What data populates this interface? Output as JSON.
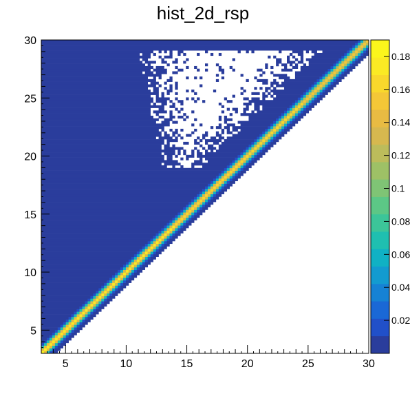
{
  "chart_data": {
    "type": "heatmap",
    "title": "hist_2d_rsp",
    "xlabel": "",
    "ylabel": "",
    "xlim": [
      3,
      30
    ],
    "ylim": [
      3,
      30
    ],
    "x_ticks": [
      "5",
      "10",
      "15",
      "20",
      "25",
      "30"
    ],
    "y_ticks": [
      "5",
      "10",
      "15",
      "20",
      "25",
      "30"
    ],
    "colorbar": {
      "range": [
        0,
        0.19
      ],
      "tick_labels": [
        "0.02",
        "0.04",
        "0.06",
        "0.08",
        "0.1",
        "0.12",
        "0.14",
        "0.16",
        "0.18"
      ],
      "colors": [
        "#2a3d9c",
        "#2150c9",
        "#1a68d6",
        "#1682d4",
        "#139bd0",
        "#10b1c4",
        "#1fbfb0",
        "#3cc599",
        "#5cc786",
        "#7fc475",
        "#9ec166",
        "#bcbc5b",
        "#d6b84f",
        "#e8bb43",
        "#f4c737",
        "#f9d82c",
        "#fbea24",
        "#fbf61c"
      ]
    },
    "description": {
      "diagonal_peak_value": 0.18,
      "background_value": 0.005,
      "empty_region": "below diagonal (y < x - 1.5)",
      "sparse_region": "upper triangle wedge between x 11-25 and y 19-29"
    }
  }
}
